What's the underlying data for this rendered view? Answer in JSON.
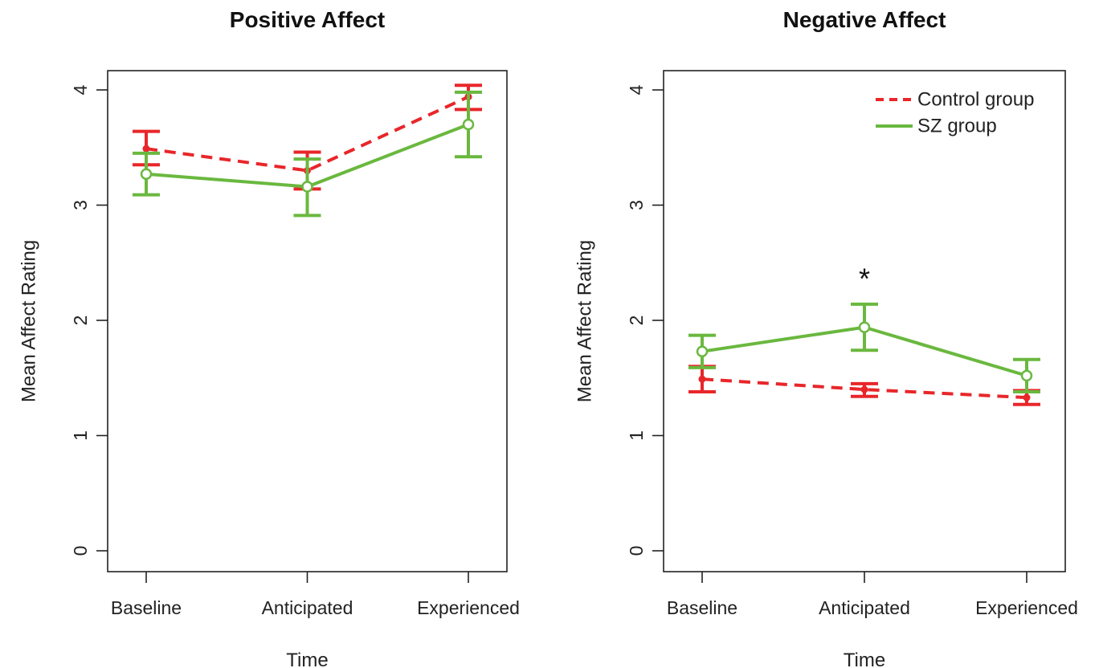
{
  "chart_data": [
    {
      "type": "line",
      "title": "Positive Affect",
      "xlabel": "Time",
      "ylabel": "Mean Affect Rating",
      "categories": [
        "Baseline",
        "Anticipated",
        "Experienced"
      ],
      "ylim": [
        0,
        4
      ],
      "yticks": [
        "0",
        "1",
        "2",
        "3",
        "4"
      ],
      "legend": null,
      "series": [
        {
          "name": "Control group",
          "color": "#e8262a",
          "style": "dashed",
          "marker": "filled-circle",
          "values": [
            3.49,
            3.3,
            3.94
          ],
          "error_low": [
            3.35,
            3.14,
            3.83
          ],
          "error_high": [
            3.64,
            3.46,
            4.04
          ]
        },
        {
          "name": "SZ group",
          "color": "#6ab83f",
          "style": "solid",
          "marker": "open-circle",
          "values": [
            3.27,
            3.16,
            3.7
          ],
          "error_low": [
            3.09,
            2.91,
            3.42
          ],
          "error_high": [
            3.45,
            3.4,
            3.98
          ]
        }
      ],
      "annotations": []
    },
    {
      "type": "line",
      "title": "Negative Affect",
      "xlabel": "Time",
      "ylabel": "Mean Affect Rating",
      "categories": [
        "Baseline",
        "Anticipated",
        "Experienced"
      ],
      "ylim": [
        0,
        4
      ],
      "yticks": [
        "0",
        "1",
        "2",
        "3",
        "4"
      ],
      "legend": "top-right",
      "series": [
        {
          "name": "Control group",
          "color": "#e8262a",
          "style": "dashed",
          "marker": "filled-circle",
          "values": [
            1.49,
            1.4,
            1.33
          ],
          "error_low": [
            1.38,
            1.34,
            1.27
          ],
          "error_high": [
            1.6,
            1.45,
            1.39
          ]
        },
        {
          "name": "SZ group",
          "color": "#6ab83f",
          "style": "solid",
          "marker": "open-circle",
          "values": [
            1.73,
            1.94,
            1.52
          ],
          "error_low": [
            1.59,
            1.74,
            1.38
          ],
          "error_high": [
            1.87,
            2.14,
            1.66
          ]
        }
      ],
      "annotations": [
        {
          "text": "*",
          "category": "Anticipated",
          "y": 2.36
        }
      ]
    }
  ]
}
